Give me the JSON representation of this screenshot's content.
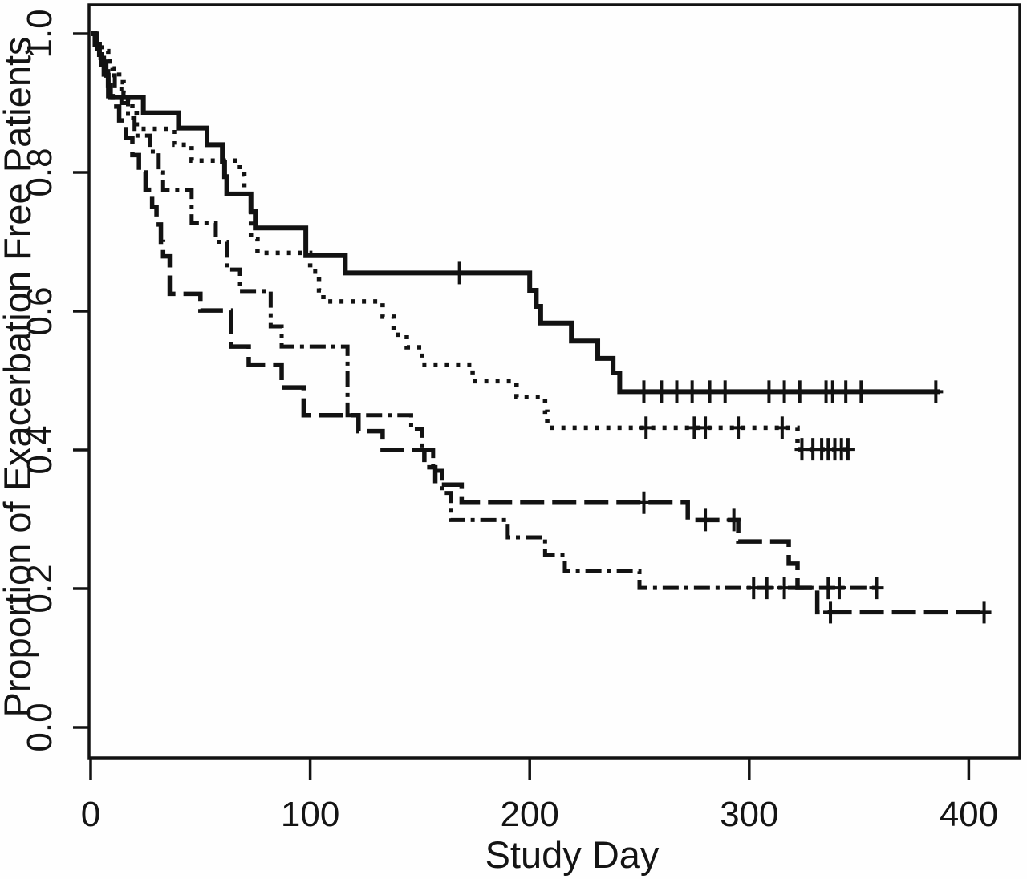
{
  "figure": {
    "description": "Kaplan-Meier plot of proportion of exacerbation free patients versus study day, four treatment arms distinguished by line style, with plus-sign censoring marks",
    "background_color": "#fefefe",
    "ink_color": "#121212"
  },
  "chart_data": {
    "type": "line",
    "subtype": "kaplan_meier_step",
    "title": "",
    "xlabel": "Study Day",
    "ylabel": "Proportion of Exacerbation Free Patients",
    "xlim": [
      0,
      424
    ],
    "ylim": [
      0.0,
      1.0
    ],
    "x_ticks": [
      0,
      100,
      200,
      300,
      400
    ],
    "x_tick_labels": [
      "0",
      "100",
      "200",
      "300",
      "400"
    ],
    "y_ticks": [
      0.0,
      0.2,
      0.4,
      0.6,
      0.8,
      1.0
    ],
    "y_tick_labels": [
      "0.0",
      "0.2",
      "0.4",
      "0.6",
      "0.8",
      "1.0"
    ],
    "grid": false,
    "legend": false,
    "censor_symbol": "+",
    "series": [
      {
        "name": "arm-solid",
        "line_style": "solid",
        "end_day": 387,
        "points": [
          [
            0,
            1.0
          ],
          [
            2,
            0.985
          ],
          [
            4,
            0.97
          ],
          [
            5,
            0.955
          ],
          [
            7,
            0.94
          ],
          [
            8,
            0.925
          ],
          [
            9,
            0.908
          ],
          [
            24,
            0.886
          ],
          [
            40,
            0.864
          ],
          [
            53,
            0.84
          ],
          [
            60,
            0.815
          ],
          [
            61,
            0.794
          ],
          [
            62,
            0.769
          ],
          [
            73,
            0.744
          ],
          [
            75,
            0.72
          ],
          [
            98,
            0.68
          ],
          [
            116,
            0.655
          ],
          [
            200,
            0.63
          ],
          [
            203,
            0.607
          ],
          [
            205,
            0.583
          ],
          [
            219,
            0.557
          ],
          [
            231,
            0.532
          ],
          [
            238,
            0.511
          ],
          [
            241,
            0.484
          ]
        ],
        "censor_marks": [
          [
            168,
            0.655
          ],
          [
            252,
            0.484
          ],
          [
            260,
            0.484
          ],
          [
            267,
            0.484
          ],
          [
            274,
            0.484
          ],
          [
            282,
            0.484
          ],
          [
            289,
            0.484
          ],
          [
            309,
            0.484
          ],
          [
            316,
            0.484
          ],
          [
            323,
            0.484
          ],
          [
            335,
            0.484
          ],
          [
            338,
            0.484
          ],
          [
            344,
            0.484
          ],
          [
            351,
            0.484
          ],
          [
            385,
            0.484
          ]
        ]
      },
      {
        "name": "arm-dotted",
        "line_style": "dotted",
        "end_day": 345,
        "points": [
          [
            0,
            1.0
          ],
          [
            2,
            0.99
          ],
          [
            5,
            0.975
          ],
          [
            8,
            0.96
          ],
          [
            10,
            0.95
          ],
          [
            13,
            0.93
          ],
          [
            15,
            0.915
          ],
          [
            17,
            0.9
          ],
          [
            19,
            0.885
          ],
          [
            21,
            0.863
          ],
          [
            38,
            0.84
          ],
          [
            46,
            0.817
          ],
          [
            68,
            0.797
          ],
          [
            70,
            0.769
          ],
          [
            73,
            0.704
          ],
          [
            76,
            0.684
          ],
          [
            100,
            0.657
          ],
          [
            104,
            0.63
          ],
          [
            106,
            0.614
          ],
          [
            133,
            0.592
          ],
          [
            138,
            0.566
          ],
          [
            144,
            0.548
          ],
          [
            151,
            0.523
          ],
          [
            174,
            0.499
          ],
          [
            194,
            0.476
          ],
          [
            207,
            0.455
          ],
          [
            208,
            0.432
          ],
          [
            322,
            0.401
          ]
        ],
        "censor_marks": [
          [
            253,
            0.432
          ],
          [
            275,
            0.432
          ],
          [
            280,
            0.432
          ],
          [
            295,
            0.432
          ],
          [
            315,
            0.432
          ],
          [
            324,
            0.401
          ],
          [
            329,
            0.401
          ],
          [
            333,
            0.401
          ],
          [
            336,
            0.401
          ],
          [
            339,
            0.401
          ],
          [
            342,
            0.401
          ],
          [
            345,
            0.401
          ]
        ]
      },
      {
        "name": "arm-long-dash",
        "line_style": "long-dash",
        "end_day": 408,
        "points": [
          [
            0,
            1.0
          ],
          [
            3,
            0.965
          ],
          [
            6,
            0.93
          ],
          [
            8,
            0.91
          ],
          [
            10,
            0.895
          ],
          [
            13,
            0.875
          ],
          [
            16,
            0.85
          ],
          [
            19,
            0.825
          ],
          [
            22,
            0.8
          ],
          [
            25,
            0.775
          ],
          [
            28,
            0.75
          ],
          [
            30,
            0.725
          ],
          [
            32,
            0.7
          ],
          [
            33,
            0.679
          ],
          [
            36,
            0.625
          ],
          [
            50,
            0.601
          ],
          [
            64,
            0.549
          ],
          [
            72,
            0.523
          ],
          [
            87,
            0.49
          ],
          [
            97,
            0.45
          ],
          [
            122,
            0.427
          ],
          [
            133,
            0.4
          ],
          [
            152,
            0.375
          ],
          [
            157,
            0.35
          ],
          [
            169,
            0.324
          ],
          [
            272,
            0.299
          ],
          [
            295,
            0.268
          ],
          [
            318,
            0.236
          ],
          [
            322,
            0.201
          ],
          [
            331,
            0.166
          ]
        ],
        "censor_marks": [
          [
            252,
            0.324
          ],
          [
            280,
            0.299
          ],
          [
            293,
            0.299
          ],
          [
            337,
            0.166
          ],
          [
            407,
            0.166
          ]
        ]
      },
      {
        "name": "arm-dash-dot",
        "line_style": "dash-dot",
        "end_day": 359,
        "points": [
          [
            0,
            1.0
          ],
          [
            2,
            0.98
          ],
          [
            5,
            0.96
          ],
          [
            8,
            0.94
          ],
          [
            11,
            0.92
          ],
          [
            14,
            0.9
          ],
          [
            17,
            0.878
          ],
          [
            20,
            0.853
          ],
          [
            27,
            0.83
          ],
          [
            31,
            0.8
          ],
          [
            33,
            0.775
          ],
          [
            46,
            0.727
          ],
          [
            57,
            0.7
          ],
          [
            62,
            0.66
          ],
          [
            68,
            0.629
          ],
          [
            82,
            0.578
          ],
          [
            87,
            0.549
          ],
          [
            117,
            0.45
          ],
          [
            146,
            0.43
          ],
          [
            151,
            0.4
          ],
          [
            156,
            0.37
          ],
          [
            160,
            0.338
          ],
          [
            164,
            0.299
          ],
          [
            190,
            0.274
          ],
          [
            207,
            0.248
          ],
          [
            216,
            0.225
          ],
          [
            250,
            0.201
          ]
        ],
        "censor_marks": [
          [
            302,
            0.201
          ],
          [
            308,
            0.201
          ],
          [
            316,
            0.201
          ],
          [
            336,
            0.201
          ],
          [
            341,
            0.201
          ],
          [
            358,
            0.201
          ]
        ]
      }
    ]
  }
}
